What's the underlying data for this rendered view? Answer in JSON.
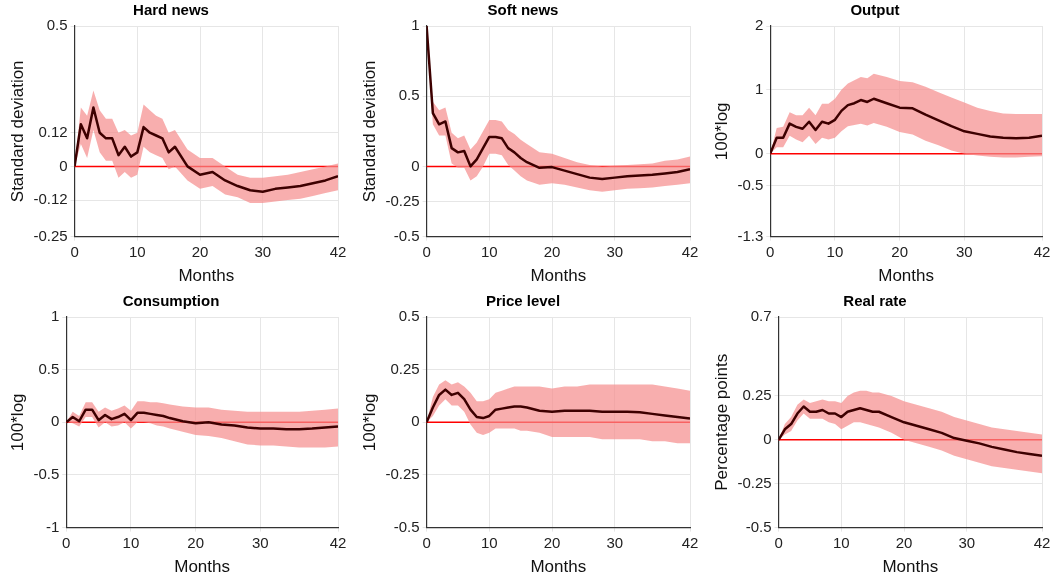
{
  "chart_data": [
    {
      "type": "line",
      "title": "Hard news",
      "xlabel": "Months",
      "ylabel": "Standard deviation",
      "x": [
        0,
        1,
        2,
        3,
        4,
        5,
        6,
        7,
        8,
        9,
        10,
        11,
        12,
        13,
        14,
        15,
        16,
        18,
        20,
        22,
        24,
        26,
        28,
        30,
        32,
        34,
        36,
        38,
        40,
        42
      ],
      "xlim": [
        0,
        42
      ],
      "xticks": [
        0,
        10,
        20,
        30,
        42
      ],
      "ylim": [
        -0.25,
        0.5
      ],
      "yticks": [
        -0.25,
        -0.12,
        0,
        0.12,
        0.5
      ],
      "grid": true,
      "ref_lines": [
        {
          "axis": "y",
          "value": 0,
          "color": "#ff0000"
        }
      ],
      "series": [
        {
          "color": "#3d0000",
          "values": [
            0,
            0.15,
            0.1,
            0.21,
            0.12,
            0.1,
            0.1,
            0.04,
            0.07,
            0.035,
            0.05,
            0.14,
            0.12,
            0.11,
            0.1,
            0.05,
            0.07,
            0,
            -0.03,
            -0.02,
            -0.05,
            -0.07,
            -0.085,
            -0.09,
            -0.08,
            -0.075,
            -0.07,
            -0.06,
            -0.05,
            -0.035
          ],
          "upper": [
            0,
            0.21,
            0.18,
            0.27,
            0.2,
            0.17,
            0.17,
            0.12,
            0.13,
            0.11,
            0.12,
            0.22,
            0.2,
            0.18,
            0.17,
            0.12,
            0.13,
            0.06,
            0.03,
            0.03,
            0,
            -0.03,
            -0.04,
            -0.04,
            -0.035,
            -0.03,
            -0.02,
            -0.01,
            0,
            0.01
          ],
          "lower": [
            0,
            0.08,
            0.03,
            0.13,
            0.05,
            0.02,
            0.02,
            -0.04,
            -0.02,
            -0.04,
            -0.03,
            0.07,
            0.05,
            0.04,
            0.03,
            -0.01,
            0,
            -0.05,
            -0.08,
            -0.07,
            -0.1,
            -0.11,
            -0.13,
            -0.13,
            -0.125,
            -0.12,
            -0.115,
            -0.105,
            -0.095,
            -0.085
          ]
        }
      ]
    },
    {
      "type": "line",
      "title": "Soft news",
      "xlabel": "Months",
      "ylabel": "Standard deviation",
      "x": [
        0,
        1,
        2,
        3,
        4,
        5,
        6,
        7,
        8,
        9,
        10,
        11,
        12,
        13,
        14,
        15,
        16,
        18,
        20,
        22,
        24,
        26,
        28,
        30,
        32,
        34,
        36,
        38,
        40,
        42
      ],
      "xlim": [
        0,
        42
      ],
      "xticks": [
        0,
        10,
        20,
        30,
        42
      ],
      "ylim": [
        -0.5,
        1
      ],
      "yticks": [
        -0.5,
        -0.25,
        0,
        0.5,
        1
      ],
      "grid": true,
      "ref_lines": [
        {
          "axis": "y",
          "value": 0,
          "color": "#ff0000"
        }
      ],
      "series": [
        {
          "color": "#3d0000",
          "values": [
            1,
            0.38,
            0.3,
            0.32,
            0.13,
            0.1,
            0.11,
            0,
            0.05,
            0.13,
            0.21,
            0.21,
            0.2,
            0.13,
            0.1,
            0.06,
            0.03,
            -0.01,
            -0.005,
            -0.03,
            -0.055,
            -0.08,
            -0.09,
            -0.08,
            -0.07,
            -0.065,
            -0.06,
            -0.05,
            -0.04,
            -0.02
          ],
          "upper": [
            1,
            0.46,
            0.4,
            0.42,
            0.24,
            0.2,
            0.22,
            0.12,
            0.17,
            0.25,
            0.33,
            0.33,
            0.32,
            0.26,
            0.23,
            0.19,
            0.16,
            0.1,
            0.09,
            0.06,
            0.03,
            0.01,
            0,
            0.005,
            0.01,
            0.015,
            0.02,
            0.04,
            0.05,
            0.07
          ],
          "lower": [
            1,
            0.3,
            0.22,
            0.22,
            0.02,
            -0.01,
            -0.01,
            -0.1,
            -0.07,
            0,
            0.09,
            0.09,
            0.08,
            0.01,
            -0.03,
            -0.07,
            -0.1,
            -0.13,
            -0.12,
            -0.13,
            -0.15,
            -0.17,
            -0.18,
            -0.17,
            -0.16,
            -0.155,
            -0.15,
            -0.14,
            -0.13,
            -0.12
          ]
        }
      ]
    },
    {
      "type": "line",
      "title": "Output",
      "xlabel": "Months",
      "ylabel": "100*log",
      "x": [
        0,
        1,
        2,
        3,
        4,
        5,
        6,
        7,
        8,
        9,
        10,
        11,
        12,
        13,
        14,
        15,
        16,
        18,
        20,
        22,
        24,
        26,
        28,
        30,
        32,
        34,
        36,
        38,
        40,
        42
      ],
      "xlim": [
        0,
        42
      ],
      "xticks": [
        0,
        10,
        20,
        30,
        42
      ],
      "ylim": [
        -1.3,
        2
      ],
      "yticks": [
        -1.3,
        -0.5,
        0,
        1,
        2
      ],
      "grid": true,
      "ref_lines": [
        {
          "axis": "y",
          "value": 0,
          "color": "#ff0000"
        }
      ],
      "series": [
        {
          "color": "#3d0000",
          "values": [
            0,
            0.25,
            0.25,
            0.47,
            0.42,
            0.39,
            0.5,
            0.37,
            0.5,
            0.47,
            0.53,
            0.67,
            0.76,
            0.79,
            0.84,
            0.81,
            0.86,
            0.79,
            0.72,
            0.71,
            0.61,
            0.52,
            0.43,
            0.35,
            0.31,
            0.27,
            0.25,
            0.24,
            0.25,
            0.28
          ],
          "upper": [
            0,
            0.4,
            0.42,
            0.65,
            0.6,
            0.6,
            0.72,
            0.6,
            0.78,
            0.78,
            0.86,
            1,
            1.1,
            1.15,
            1.2,
            1.18,
            1.25,
            1.2,
            1.14,
            1.12,
            1.05,
            0.96,
            0.88,
            0.8,
            0.72,
            0.67,
            0.63,
            0.62,
            0.62,
            0.62
          ],
          "lower": [
            0,
            0.1,
            0.1,
            0.28,
            0.22,
            0.18,
            0.28,
            0.15,
            0.25,
            0.22,
            0.25,
            0.35,
            0.43,
            0.45,
            0.47,
            0.44,
            0.48,
            0.42,
            0.34,
            0.3,
            0.2,
            0.13,
            0.05,
            0,
            -0.03,
            -0.05,
            -0.06,
            -0.06,
            -0.05,
            -0.04
          ]
        }
      ]
    },
    {
      "type": "line",
      "title": "Consumption",
      "xlabel": "Months",
      "ylabel": "100*log",
      "x": [
        0,
        1,
        2,
        3,
        4,
        5,
        6,
        7,
        8,
        9,
        10,
        11,
        12,
        13,
        14,
        15,
        16,
        18,
        20,
        22,
        24,
        26,
        28,
        30,
        32,
        34,
        36,
        38,
        40,
        42
      ],
      "xlim": [
        0,
        42
      ],
      "xticks": [
        0,
        10,
        20,
        30,
        42
      ],
      "ylim": [
        -1,
        1
      ],
      "yticks": [
        -1,
        -0.5,
        0,
        0.5,
        1
      ],
      "grid": true,
      "ref_lines": [
        {
          "axis": "y",
          "value": 0,
          "color": "#ff0000"
        }
      ],
      "series": [
        {
          "color": "#3d0000",
          "values": [
            0,
            0.05,
            0.01,
            0.12,
            0.12,
            0.02,
            0.07,
            0.03,
            0.05,
            0.08,
            0.02,
            0.09,
            0.09,
            0.08,
            0.07,
            0.06,
            0.04,
            0.01,
            -0.01,
            0,
            -0.02,
            -0.03,
            -0.05,
            -0.06,
            -0.06,
            -0.065,
            -0.065,
            -0.06,
            -0.05,
            -0.04
          ],
          "upper": [
            0,
            0.1,
            0.06,
            0.19,
            0.19,
            0.1,
            0.14,
            0.11,
            0.13,
            0.16,
            0.11,
            0.2,
            0.2,
            0.19,
            0.19,
            0.18,
            0.17,
            0.15,
            0.14,
            0.14,
            0.12,
            0.11,
            0.1,
            0.1,
            0.1,
            0.1,
            0.1,
            0.11,
            0.12,
            0.13
          ],
          "lower": [
            0,
            -0.01,
            -0.04,
            0.05,
            0.05,
            -0.05,
            0,
            -0.04,
            -0.03,
            0,
            -0.06,
            0,
            0,
            -0.01,
            -0.03,
            -0.04,
            -0.06,
            -0.09,
            -0.12,
            -0.13,
            -0.15,
            -0.18,
            -0.21,
            -0.22,
            -0.22,
            -0.23,
            -0.24,
            -0.24,
            -0.24,
            -0.23
          ]
        }
      ]
    },
    {
      "type": "line",
      "title": "Price level",
      "xlabel": "Months",
      "ylabel": "100*log",
      "x": [
        0,
        1,
        2,
        3,
        4,
        5,
        6,
        7,
        8,
        9,
        10,
        11,
        12,
        13,
        14,
        15,
        16,
        18,
        20,
        22,
        24,
        26,
        28,
        30,
        32,
        34,
        36,
        38,
        40,
        42
      ],
      "xlim": [
        0,
        42
      ],
      "xticks": [
        0,
        10,
        20,
        30,
        42
      ],
      "ylim": [
        -0.5,
        0.5
      ],
      "yticks": [
        -0.5,
        -0.25,
        0,
        0.25,
        0.5
      ],
      "grid": true,
      "ref_lines": [
        {
          "axis": "y",
          "value": 0,
          "color": "#ff0000"
        }
      ],
      "series": [
        {
          "color": "#3d0000",
          "values": [
            0,
            0.07,
            0.13,
            0.155,
            0.13,
            0.14,
            0.11,
            0.06,
            0.025,
            0.02,
            0.03,
            0.06,
            0.065,
            0.07,
            0.075,
            0.075,
            0.07,
            0.055,
            0.05,
            0.055,
            0.055,
            0.055,
            0.05,
            0.05,
            0.05,
            0.048,
            0.04,
            0.032,
            0.025,
            0.018
          ],
          "upper": [
            0,
            0.12,
            0.18,
            0.2,
            0.18,
            0.19,
            0.17,
            0.14,
            0.1,
            0.1,
            0.11,
            0.14,
            0.15,
            0.16,
            0.17,
            0.17,
            0.17,
            0.17,
            0.16,
            0.17,
            0.17,
            0.18,
            0.18,
            0.18,
            0.18,
            0.18,
            0.18,
            0.17,
            0.16,
            0.15
          ],
          "lower": [
            0,
            0.03,
            0.08,
            0.11,
            0.08,
            0.08,
            0.05,
            -0.01,
            -0.05,
            -0.06,
            -0.05,
            -0.03,
            -0.03,
            -0.03,
            -0.03,
            -0.04,
            -0.04,
            -0.05,
            -0.07,
            -0.07,
            -0.07,
            -0.07,
            -0.08,
            -0.08,
            -0.08,
            -0.08,
            -0.09,
            -0.09,
            -0.1,
            -0.1
          ]
        }
      ]
    },
    {
      "type": "line",
      "title": "Real rate",
      "xlabel": "Months",
      "ylabel": "Percentage points",
      "x": [
        0,
        1,
        2,
        3,
        4,
        5,
        6,
        7,
        8,
        9,
        10,
        11,
        12,
        13,
        14,
        15,
        16,
        18,
        20,
        22,
        24,
        26,
        28,
        30,
        32,
        34,
        36,
        38,
        40,
        42
      ],
      "xlim": [
        0,
        42
      ],
      "xticks": [
        0,
        10,
        20,
        30,
        42
      ],
      "ylim": [
        -0.5,
        0.7
      ],
      "yticks": [
        -0.5,
        -0.25,
        0,
        0.25,
        0.7
      ],
      "grid": true,
      "ref_lines": [
        {
          "axis": "y",
          "value": 0,
          "color": "#ff0000"
        }
      ],
      "series": [
        {
          "color": "#3d0000",
          "values": [
            0,
            0.06,
            0.09,
            0.15,
            0.19,
            0.16,
            0.16,
            0.17,
            0.15,
            0.15,
            0.13,
            0.16,
            0.17,
            0.18,
            0.17,
            0.16,
            0.16,
            0.13,
            0.1,
            0.08,
            0.06,
            0.04,
            0.01,
            -0.005,
            -0.02,
            -0.04,
            -0.055,
            -0.07,
            -0.08,
            -0.09
          ],
          "upper": [
            0,
            0.09,
            0.13,
            0.2,
            0.23,
            0.21,
            0.22,
            0.23,
            0.22,
            0.22,
            0.21,
            0.25,
            0.27,
            0.28,
            0.28,
            0.27,
            0.27,
            0.25,
            0.22,
            0.2,
            0.18,
            0.16,
            0.13,
            0.11,
            0.09,
            0.07,
            0.06,
            0.05,
            0.04,
            0.03
          ],
          "lower": [
            0,
            0.03,
            0.05,
            0.11,
            0.15,
            0.12,
            0.12,
            0.12,
            0.1,
            0.09,
            0.06,
            0.08,
            0.1,
            0.1,
            0.09,
            0.08,
            0.07,
            0.04,
            0,
            -0.02,
            -0.04,
            -0.06,
            -0.09,
            -0.11,
            -0.13,
            -0.15,
            -0.16,
            -0.17,
            -0.18,
            -0.19
          ]
        }
      ]
    }
  ]
}
